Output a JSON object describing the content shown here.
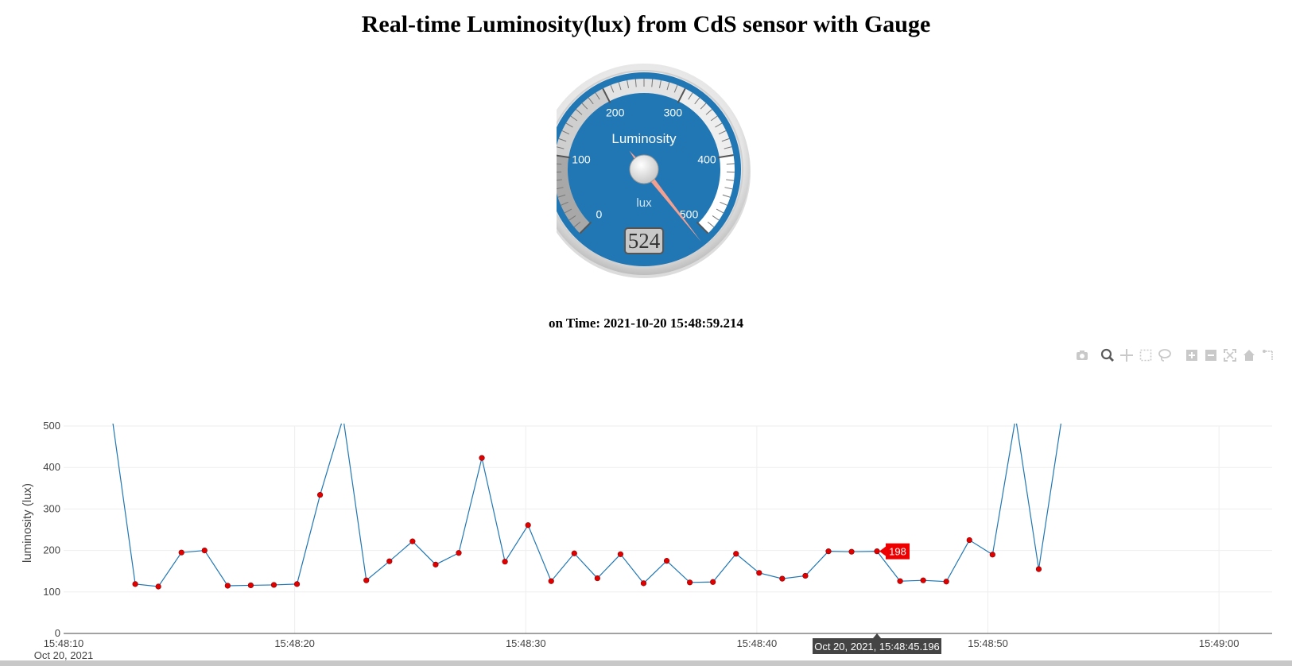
{
  "page": {
    "title": "Real-time Luminosity(lux) from CdS sensor with Gauge",
    "time_line": "on Time: 2021-10-20 15:48:59.214"
  },
  "gauge": {
    "title": "Luminosity",
    "units": "lux",
    "value": 524,
    "value_text": "524",
    "min": 0,
    "max": 500,
    "major_ticks": [
      "0",
      "100",
      "200",
      "300",
      "400",
      "500"
    ],
    "colors": {
      "body": "#2077b4",
      "needle": "#f4a090",
      "value_box": "#c8c8c8"
    }
  },
  "modebar": {
    "icons": [
      "camera-icon",
      "zoom-icon",
      "pan-icon",
      "box-select-icon",
      "lasso-icon",
      "zoom-in-icon",
      "zoom-out-icon",
      "autoscale-icon",
      "reset-axes-icon",
      "spike-lines-icon"
    ]
  },
  "chart_data": {
    "type": "line",
    "ylabel": "luminosity (lux)",
    "xlabel": "",
    "ylim": [
      0,
      500
    ],
    "xlim": [
      "15:48:10",
      "15:49:02.3"
    ],
    "grid": true,
    "x_ticks": [
      "15:48:10",
      "15:48:20",
      "15:48:30",
      "15:48:40",
      "15:48:50",
      "15:49:00"
    ],
    "x_date_label": "Oct 20, 2021",
    "y_ticks": [
      "0",
      "100",
      "200",
      "300",
      "400",
      "500"
    ],
    "series": [
      {
        "line_color": "#2077b4",
        "marker_color": "#e10000",
        "x": [
          "15:48:12.1",
          "15:48:13.1",
          "15:48:14.1",
          "15:48:15.1",
          "15:48:16.1",
          "15:48:17.1",
          "15:48:18.1",
          "15:48:19.1",
          "15:48:20.1",
          "15:48:21.1",
          "15:48:22.1",
          "15:48:23.1",
          "15:48:24.1",
          "15:48:25.1",
          "15:48:26.1",
          "15:48:27.1",
          "15:48:28.1",
          "15:48:29.1",
          "15:48:30.1",
          "15:48:31.1",
          "15:48:32.1",
          "15:48:33.1",
          "15:48:34.1",
          "15:48:35.1",
          "15:48:36.1",
          "15:48:37.1",
          "15:48:38.1",
          "15:48:39.1",
          "15:48:40.1",
          "15:48:41.1",
          "15:48:42.1",
          "15:48:43.1",
          "15:48:44.1",
          "15:48:45.2",
          "15:48:46.2",
          "15:48:47.2",
          "15:48:48.2",
          "15:48:49.2",
          "15:48:50.2",
          "15:48:51.2",
          "15:48:52.2",
          "15:48:53.2"
        ],
        "y": [
          520,
          119,
          113,
          195,
          200,
          115,
          116,
          117,
          119,
          334,
          520,
          128,
          174,
          222,
          166,
          194,
          423,
          173,
          261,
          126,
          193,
          133,
          191,
          121,
          175,
          123,
          124,
          192,
          146,
          132,
          139,
          198,
          197,
          198,
          126,
          128,
          125,
          225,
          190,
          520,
          155,
          520
        ]
      }
    ],
    "hover": {
      "value_text": "198",
      "x_text": "Oct 20, 2021, 15:48:45.196",
      "point_index": 33
    }
  }
}
